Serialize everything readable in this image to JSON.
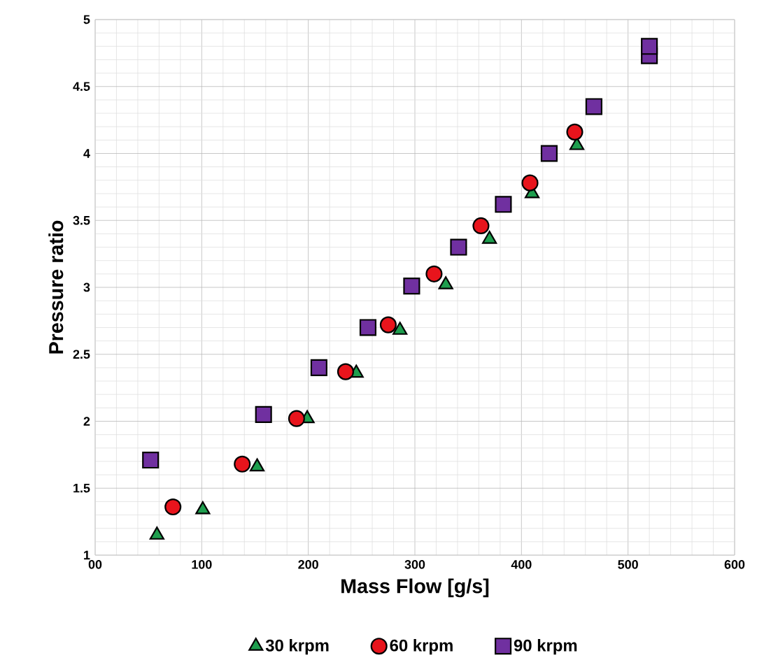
{
  "chart_data": {
    "type": "scatter",
    "xlabel": "Mass Flow [g/s]",
    "ylabel": "Pressure ratio",
    "xlim": [
      0,
      600
    ],
    "ylim": [
      1,
      5
    ],
    "xticks": [
      {
        "value": 0,
        "label": "00"
      },
      100,
      200,
      300,
      400,
      500,
      600
    ],
    "yticks": [
      1,
      1.5,
      2,
      2.5,
      3,
      3.5,
      4,
      4.5,
      5
    ],
    "grid": true,
    "legend": "bottom",
    "series": [
      {
        "name": "30 krpm",
        "color": "#1e9e4e",
        "marker": "triangle",
        "x": [
          58,
          101,
          152,
          199,
          245,
          286,
          329,
          370,
          410,
          452
        ],
        "values": [
          1.15,
          1.34,
          1.66,
          2.02,
          2.36,
          2.68,
          3.02,
          3.36,
          3.7,
          4.06
        ]
      },
      {
        "name": "60 krpm",
        "color": "#e8141c",
        "marker": "circle",
        "x": [
          73,
          138,
          189,
          235,
          275,
          318,
          362,
          408,
          450
        ],
        "values": [
          1.36,
          1.68,
          2.02,
          2.37,
          2.72,
          3.1,
          3.46,
          3.78,
          4.16
        ]
      },
      {
        "name": "90 krpm",
        "color": "#7030a0",
        "marker": "square",
        "x": [
          52,
          158,
          210,
          256,
          297,
          341,
          383,
          426,
          468,
          520,
          520
        ],
        "values": [
          1.71,
          2.05,
          2.4,
          2.7,
          3.01,
          3.3,
          3.62,
          4.0,
          4.35,
          4.73,
          4.8
        ]
      }
    ]
  }
}
